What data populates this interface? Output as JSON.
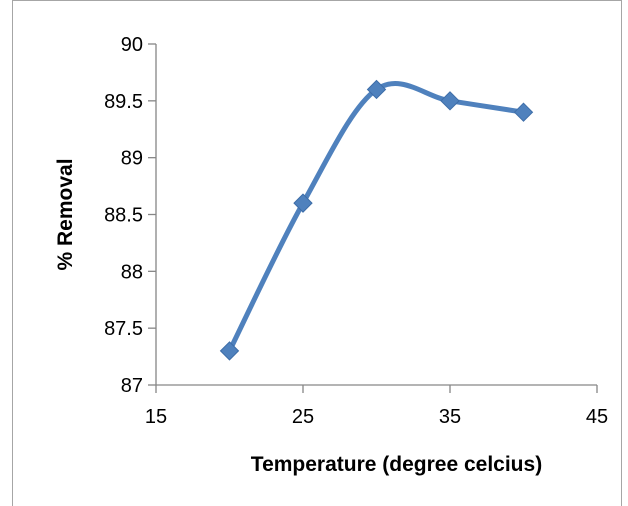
{
  "chart_data": {
    "type": "line",
    "smoothed": true,
    "title": "",
    "xlabel": "Temperature (degree celcius)",
    "ylabel": "% Removal",
    "xlim": [
      15,
      45
    ],
    "ylim": [
      87,
      90
    ],
    "x_ticks": [
      "15",
      "25",
      "35",
      "45"
    ],
    "y_ticks": [
      "87",
      "87.5",
      "88",
      "88.5",
      "89",
      "89.5",
      "90"
    ],
    "grid": false,
    "legend": "none",
    "marker": "diamond",
    "series_color": "#4f81bd",
    "series": [
      {
        "x": [
          20,
          25,
          30,
          35,
          40
        ],
        "y": [
          87.3,
          88.6,
          89.6,
          89.5,
          89.4
        ]
      }
    ]
  }
}
